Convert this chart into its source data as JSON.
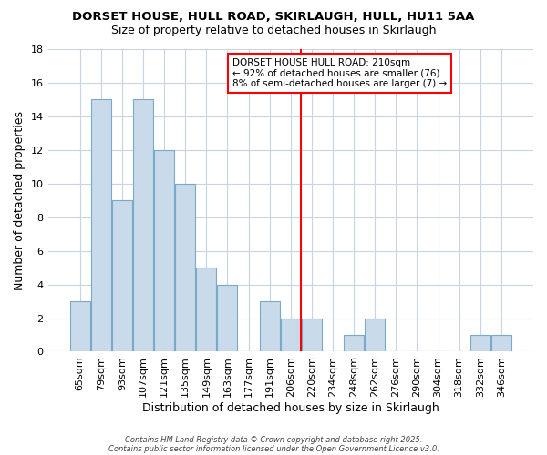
{
  "title_line1": "DORSET HOUSE, HULL ROAD, SKIRLAUGH, HULL, HU11 5AA",
  "title_line2": "Size of property relative to detached houses in Skirlaugh",
  "xlabel": "Distribution of detached houses by size in Skirlaugh",
  "ylabel": "Number of detached properties",
  "categories": [
    "65sqm",
    "79sqm",
    "93sqm",
    "107sqm",
    "121sqm",
    "135sqm",
    "149sqm",
    "163sqm",
    "177sqm",
    "191sqm",
    "206sqm",
    "220sqm",
    "234sqm",
    "248sqm",
    "262sqm",
    "276sqm",
    "290sqm",
    "304sqm",
    "318sqm",
    "332sqm",
    "346sqm"
  ],
  "values": [
    3,
    15,
    9,
    15,
    12,
    10,
    5,
    4,
    0,
    3,
    2,
    2,
    0,
    1,
    2,
    0,
    0,
    0,
    0,
    1,
    1
  ],
  "bar_color": "#c9daea",
  "bar_edge_color": "#7aaac8",
  "ylim": [
    0,
    18
  ],
  "yticks": [
    0,
    2,
    4,
    6,
    8,
    10,
    12,
    14,
    16,
    18
  ],
  "red_line_x": 10.5,
  "annotation_line1": "DORSET HOUSE HULL ROAD: 210sqm",
  "annotation_line2": "← 92% of detached houses are smaller (76)",
  "annotation_line3": "8% of semi-detached houses are larger (7) →",
  "background_color": "#ffffff",
  "grid_color": "#c8d4e0",
  "title_fontsize": 9.5,
  "subtitle_fontsize": 9,
  "axis_label_fontsize": 9,
  "tick_fontsize": 8,
  "footer_text_line1": "Contains HM Land Registry data © Crown copyright and database right 2025.",
  "footer_text_line2": "Contains public sector information licensed under the Open Government Licence v3.0."
}
